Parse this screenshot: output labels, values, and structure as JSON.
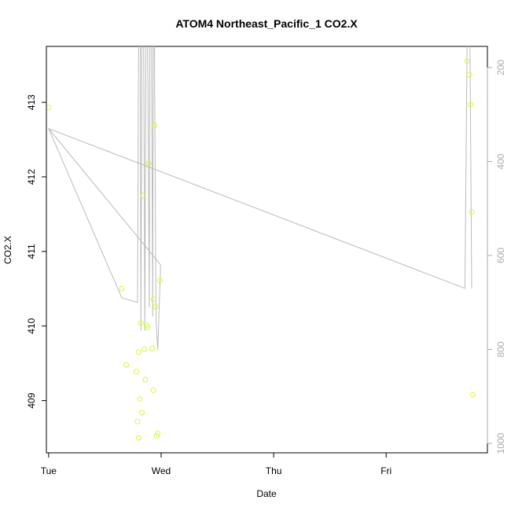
{
  "chart_data": {
    "type": "scatter",
    "title": "ATOM4 Northeast_Pacific_1 CO2.X",
    "xlabel": "Date",
    "ylabel": "CO2.X",
    "x_ticks": [
      "Tue",
      "Wed",
      "Thu",
      "Fri"
    ],
    "y_ticks": [
      "409",
      "410",
      "411",
      "412",
      "413"
    ],
    "y2_ticks": [
      "200",
      "400",
      "600",
      "800",
      "1000"
    ],
    "xlim": [
      -0.02,
      3.9
    ],
    "ylim": [
      408.3,
      413.75
    ],
    "y2lim": [
      1020,
      155
    ],
    "y2_reversed": true,
    "colors": {
      "points": "#ccff33",
      "line": "#bbbbbb",
      "axis": "#000000",
      "axis2": "#aaaaaa"
    },
    "series": [
      {
        "type": "scatter",
        "points": [
          [
            0.0,
            412.93
          ],
          [
            0.65,
            410.5
          ],
          [
            0.69,
            409.48
          ],
          [
            0.78,
            409.39
          ],
          [
            0.79,
            408.72
          ],
          [
            0.8,
            408.5
          ],
          [
            0.8,
            409.65
          ],
          [
            0.81,
            409.02
          ],
          [
            0.82,
            410.04
          ],
          [
            0.83,
            408.84
          ],
          [
            0.84,
            411.75
          ],
          [
            0.85,
            409.69
          ],
          [
            0.86,
            409.28
          ],
          [
            0.87,
            410.01
          ],
          [
            0.88,
            409.98
          ],
          [
            0.89,
            412.18
          ],
          [
            0.92,
            409.7
          ],
          [
            0.93,
            410.36
          ],
          [
            0.93,
            409.14
          ],
          [
            0.94,
            412.69
          ],
          [
            0.95,
            410.26
          ],
          [
            0.96,
            408.53
          ],
          [
            0.97,
            408.56
          ],
          [
            0.99,
            410.61
          ],
          [
            3.72,
            413.55
          ],
          [
            3.74,
            413.37
          ],
          [
            3.75,
            412.97
          ],
          [
            3.76,
            411.53
          ],
          [
            3.77,
            409.08
          ]
        ]
      },
      {
        "type": "line",
        "axis": "secondary",
        "points": [
          [
            0.0,
            330
          ],
          [
            0.65,
            690
          ],
          [
            0.79,
            700
          ],
          [
            0.8,
            140
          ],
          [
            0.815,
            140
          ],
          [
            0.82,
            760
          ],
          [
            0.83,
            140
          ],
          [
            0.845,
            140
          ],
          [
            0.855,
            760
          ],
          [
            0.865,
            140
          ],
          [
            0.88,
            140
          ],
          [
            0.895,
            710
          ],
          [
            0.9,
            140
          ],
          [
            0.915,
            140
          ],
          [
            0.925,
            730
          ],
          [
            0.93,
            140
          ],
          [
            0.94,
            140
          ],
          [
            0.955,
            740
          ],
          [
            0.97,
            800
          ],
          [
            0.995,
            620
          ],
          [
            0.0,
            330
          ],
          [
            3.7,
            670
          ],
          [
            3.72,
            140
          ],
          [
            3.745,
            140
          ],
          [
            3.76,
            670
          ]
        ]
      }
    ]
  }
}
